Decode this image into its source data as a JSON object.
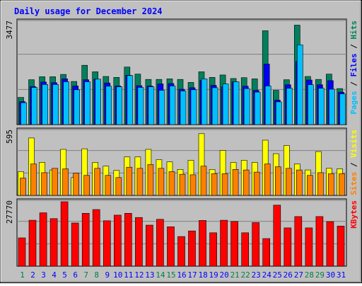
{
  "title": "Daily usage for December 2024",
  "colors": {
    "background": "#c0c0c0",
    "hits": "#00805c",
    "files": "#0000ff",
    "pages": "#00c0ff",
    "visits": "#ffff00",
    "sites": "#ff8000",
    "kbytes": "#ff0000",
    "weekday_label": "#0000ff",
    "weekend_label": "#008040"
  },
  "chart_data": [
    {
      "type": "bar",
      "panel": "hits-files-pages",
      "y_max_label": "3477",
      "ylim": [
        0,
        3477
      ],
      "legend": [
        {
          "text": "Pages",
          "color": "#00c0ff"
        },
        {
          "text": " / ",
          "color": "#000000"
        },
        {
          "text": "Files",
          "color": "#0000ff"
        },
        {
          "text": " / ",
          "color": "#000000"
        },
        {
          "text": "Hits",
          "color": "#00805c"
        }
      ],
      "series": [
        {
          "name": "Hits",
          "values": [
            920,
            1520,
            1620,
            1620,
            1700,
            1460,
            2010,
            1790,
            1630,
            1600,
            1950,
            1710,
            1530,
            1530,
            1550,
            1530,
            1430,
            1790,
            1600,
            1680,
            1560,
            1590,
            1550,
            3180,
            1160,
            1520,
            3370,
            1630,
            1530,
            1710,
            1220
          ]
        },
        {
          "name": "Files",
          "values": [
            780,
            1290,
            1440,
            1420,
            1550,
            1310,
            1520,
            1540,
            1410,
            1310,
            1670,
            1320,
            1310,
            1380,
            1390,
            1200,
            1250,
            1500,
            1330,
            1280,
            1450,
            1300,
            1160,
            2050,
            830,
            1350,
            2140,
            1510,
            1350,
            1490,
            1100
          ]
        },
        {
          "name": "Pages",
          "values": [
            740,
            1260,
            1360,
            1360,
            1450,
            1180,
            1450,
            1540,
            1300,
            1280,
            1660,
            1260,
            1280,
            1160,
            1310,
            1140,
            1180,
            1550,
            1250,
            1380,
            1450,
            1220,
            1100,
            1310,
            770,
            1230,
            2700,
            1350,
            1230,
            1200,
            1040
          ]
        }
      ]
    },
    {
      "type": "bar",
      "panel": "visits-sites",
      "y_max_label": "595",
      "ylim": [
        0,
        595
      ],
      "legend": [
        {
          "text": "Sites",
          "color": "#ff8000"
        },
        {
          "text": " / ",
          "color": "#000000"
        },
        {
          "text": "Visits",
          "color": "#ffff00"
        }
      ],
      "series": [
        {
          "name": "Visits",
          "values": [
            220,
            530,
            305,
            235,
            425,
            165,
            430,
            305,
            270,
            230,
            355,
            355,
            425,
            330,
            310,
            240,
            325,
            570,
            240,
            415,
            305,
            325,
            305,
            510,
            385,
            460,
            290,
            235,
            405,
            250,
            245
          ]
        },
        {
          "name": "Sites",
          "values": [
            160,
            290,
            210,
            250,
            245,
            205,
            185,
            250,
            185,
            165,
            260,
            250,
            285,
            250,
            220,
            195,
            190,
            270,
            200,
            200,
            240,
            235,
            215,
            290,
            265,
            250,
            235,
            185,
            210,
            200,
            200
          ]
        }
      ]
    },
    {
      "type": "bar",
      "panel": "kbytes",
      "y_max_label": "27770",
      "ylim": [
        0,
        27770
      ],
      "legend": [
        {
          "text": "KBytes",
          "color": "#ff0000"
        }
      ],
      "series": [
        {
          "name": "KBytes",
          "values": [
            12200,
            19800,
            23000,
            20500,
            27770,
            18600,
            22800,
            24400,
            19600,
            22000,
            22800,
            21000,
            17700,
            20200,
            17000,
            12800,
            15200,
            19700,
            14400,
            19800,
            19300,
            14400,
            18800,
            11900,
            26300,
            16500,
            21400,
            16500,
            21400,
            19200,
            17300
          ]
        }
      ]
    }
  ],
  "x_axis": {
    "days": [
      "1",
      "2",
      "3",
      "4",
      "5",
      "6",
      "7",
      "8",
      "9",
      "10",
      "11",
      "12",
      "13",
      "14",
      "15",
      "16",
      "17",
      "18",
      "19",
      "20",
      "21",
      "22",
      "23",
      "24",
      "25",
      "26",
      "27",
      "28",
      "29",
      "30",
      "31"
    ],
    "weekend_days": [
      "1",
      "7",
      "8",
      "14",
      "15",
      "21",
      "22",
      "28",
      "29"
    ]
  }
}
